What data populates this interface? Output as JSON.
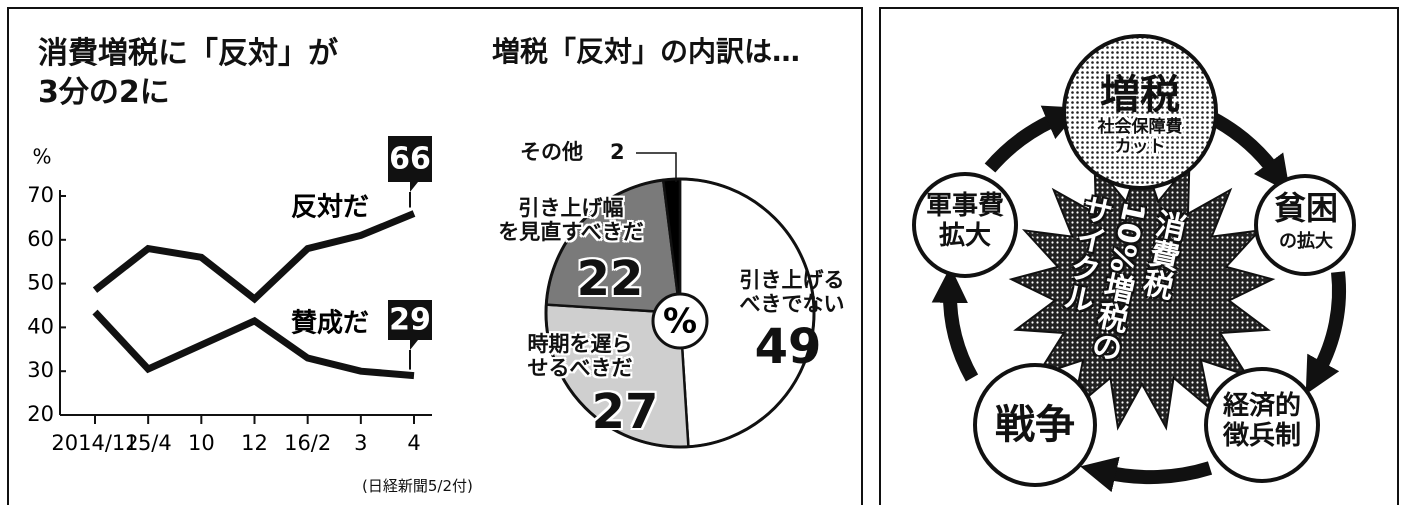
{
  "chart_data": [
    {
      "type": "line",
      "title": "消費増税に「反対」が\n3分の2に",
      "y_label": "%",
      "categories": [
        "2014/12",
        "15/4",
        "10",
        "12",
        "16/2",
        "3",
        "4"
      ],
      "ylim": [
        20,
        70
      ],
      "yticks": [
        20,
        30,
        40,
        50,
        60,
        70
      ],
      "series": [
        {
          "name": "反対だ",
          "color": "#111111",
          "values": [
            48.5,
            58,
            56,
            46.5,
            58,
            61,
            66
          ]
        },
        {
          "name": "賛成だ",
          "color": "#111111",
          "values": [
            43.5,
            30.5,
            36,
            41.5,
            33,
            30,
            29
          ]
        }
      ]
    },
    {
      "type": "pie",
      "title": "増税「反対」の内訳は…",
      "center_label": "%",
      "categories": [
        "引き上げる\nべきでない",
        "時期を遅ら\nせるべきだ",
        "引き上げ幅\nを見直すべきだ",
        "その他"
      ],
      "values": [
        49,
        27,
        22,
        2
      ],
      "colors": [
        "#ffffff",
        "#cfcfcf",
        "#7a7a7a",
        "#000000"
      ]
    }
  ],
  "source": "(日経新聞5/2付)",
  "diagram": {
    "nodes": [
      {
        "label": "増税",
        "sublabel": "社会保障費\nカット"
      },
      {
        "label": "貧困",
        "sublabel": "の拡大"
      },
      {
        "label": "経済的\n徴兵制"
      },
      {
        "label": "戦争"
      },
      {
        "label": "軍事費\n拡大"
      }
    ],
    "center": "消費税\n10%増税の\nサイクル"
  }
}
